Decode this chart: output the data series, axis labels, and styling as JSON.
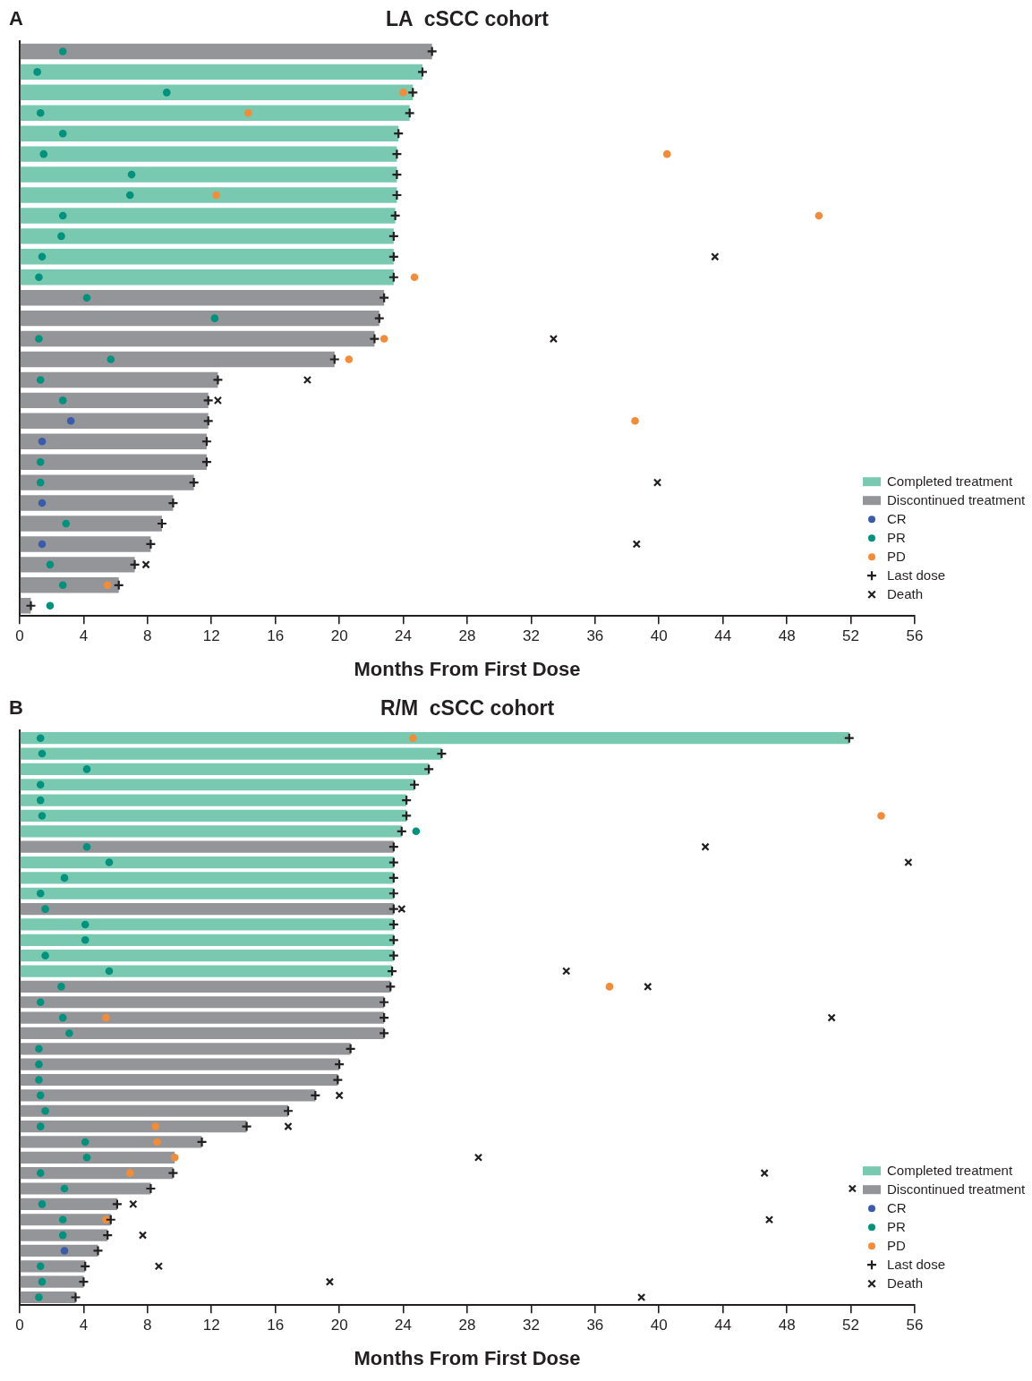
{
  "chart_data": [
    {
      "type": "bar",
      "orientation": "horizontal",
      "stacked": true,
      "title": "LA  cSCC cohort",
      "xlabel": "Months From First Dose",
      "annotations": [
        "A"
      ],
      "legend": "bottom right",
      "tick_labels": "x",
      "categories": [
        null,
        null,
        null,
        null,
        null,
        null,
        null,
        null,
        null,
        null,
        null,
        null,
        null,
        null,
        null,
        null,
        null,
        null,
        null,
        null,
        null,
        null,
        null,
        null,
        null,
        null,
        null,
        null
      ],
      "xlim": [
        0,
        56
      ],
      "xticks": [
        0,
        4,
        8,
        12,
        16,
        20,
        24,
        28,
        32,
        36,
        40,
        44,
        48,
        52,
        56
      ],
      "series": [
        {
          "name": "Completed treatment",
          "color": "#79c9b0",
          "values": [
            null,
            25.2,
            24.6,
            24.4,
            23.7,
            23.6,
            23.6,
            23.6,
            23.5,
            23.4,
            23.4,
            23.4,
            null,
            null,
            null,
            null,
            null,
            null,
            null,
            null,
            null,
            null,
            null,
            null,
            null,
            null,
            null,
            null
          ]
        },
        {
          "name": "Discontinued treatment",
          "color": "#939598",
          "values": [
            25.8,
            null,
            null,
            null,
            null,
            null,
            null,
            null,
            null,
            null,
            null,
            null,
            22.8,
            22.5,
            22.2,
            19.7,
            12.4,
            11.8,
            11.8,
            11.7,
            11.7,
            10.9,
            9.6,
            8.9,
            8.2,
            7.2,
            6.2,
            0.7
          ]
        },
        {
          "name": "CR",
          "type": "scatter",
          "marker": "circle",
          "color": "#3b5ba9",
          "values": [
            null,
            null,
            null,
            null,
            null,
            null,
            null,
            null,
            null,
            null,
            null,
            null,
            null,
            null,
            null,
            null,
            null,
            null,
            3.2,
            1.4,
            null,
            null,
            1.4,
            null,
            1.4,
            null,
            null,
            null
          ]
        },
        {
          "name": "PR",
          "type": "scatter",
          "marker": "circle",
          "color": "#00927d",
          "values": [
            2.7,
            1.1,
            9.2,
            1.3,
            2.7,
            1.5,
            7.0,
            6.9,
            2.7,
            2.6,
            1.4,
            1.2,
            4.2,
            12.2,
            1.2,
            5.7,
            1.3,
            2.7,
            null,
            null,
            1.3,
            1.3,
            null,
            2.9,
            null,
            1.9,
            2.7,
            1.9
          ]
        },
        {
          "name": "PD",
          "type": "scatter",
          "marker": "circle",
          "color": "#f28c38",
          "values": [
            null,
            null,
            24.0,
            14.3,
            null,
            40.5,
            null,
            12.3,
            50.0,
            null,
            null,
            24.7,
            null,
            null,
            22.8,
            20.6,
            null,
            null,
            38.5,
            null,
            null,
            null,
            null,
            null,
            null,
            null,
            5.5,
            null
          ]
        },
        {
          "name": "Last dose",
          "type": "scatter",
          "marker": "plus",
          "color": "#231f20",
          "values": [
            25.8,
            25.2,
            24.6,
            24.4,
            23.7,
            23.6,
            23.6,
            23.6,
            23.5,
            23.4,
            23.4,
            23.4,
            22.8,
            22.5,
            22.2,
            19.7,
            12.4,
            11.8,
            11.8,
            11.7,
            11.7,
            10.9,
            9.6,
            8.9,
            8.2,
            7.2,
            6.2,
            0.7
          ]
        },
        {
          "name": "Death",
          "type": "scatter",
          "marker": "cross",
          "color": "#231f20",
          "values": [
            null,
            null,
            null,
            null,
            null,
            null,
            null,
            null,
            null,
            null,
            43.5,
            null,
            null,
            null,
            33.4,
            null,
            18.0,
            12.4,
            null,
            null,
            null,
            39.9,
            null,
            null,
            38.6,
            7.9,
            null,
            null
          ]
        }
      ]
    },
    {
      "type": "bar",
      "orientation": "horizontal",
      "stacked": true,
      "title": "R/M  cSCC cohort",
      "xlabel": "Months From First Dose",
      "annotations": [
        "B"
      ],
      "legend": "bottom right",
      "tick_labels": "x",
      "categories": [
        null,
        null,
        null,
        null,
        null,
        null,
        null,
        null,
        null,
        null,
        null,
        null,
        null,
        null,
        null,
        null,
        null,
        null,
        null,
        null,
        null,
        null,
        null,
        null,
        null,
        null,
        null,
        null,
        null,
        null,
        null,
        null,
        null,
        null,
        null,
        null,
        null
      ],
      "xlim": [
        0,
        56
      ],
      "xticks": [
        0,
        4,
        8,
        12,
        16,
        20,
        24,
        28,
        32,
        36,
        40,
        44,
        48,
        52,
        56
      ],
      "series": [
        {
          "name": "Completed treatment",
          "color": "#79c9b0",
          "values": [
            51.9,
            26.4,
            25.6,
            24.7,
            24.2,
            24.2,
            23.9,
            null,
            23.4,
            23.4,
            23.4,
            null,
            23.4,
            23.4,
            23.4,
            23.3,
            null,
            null,
            null,
            null,
            null,
            null,
            null,
            null,
            null,
            null,
            null,
            null,
            null,
            null,
            null,
            null,
            null,
            null,
            null,
            null,
            null
          ]
        },
        {
          "name": "Discontinued treatment",
          "color": "#939598",
          "values": [
            null,
            null,
            null,
            null,
            null,
            null,
            null,
            23.4,
            null,
            null,
            null,
            23.4,
            null,
            null,
            null,
            null,
            23.2,
            22.8,
            22.8,
            22.8,
            20.7,
            20.0,
            19.9,
            18.5,
            16.8,
            14.2,
            11.4,
            9.7,
            9.6,
            8.2,
            6.1,
            5.7,
            5.5,
            4.9,
            4.1,
            4.0,
            3.5
          ]
        },
        {
          "name": "CR",
          "type": "scatter",
          "marker": "circle",
          "color": "#3b5ba9",
          "values": [
            null,
            null,
            null,
            null,
            null,
            null,
            null,
            null,
            null,
            null,
            null,
            null,
            null,
            null,
            null,
            null,
            null,
            null,
            null,
            null,
            null,
            null,
            null,
            null,
            null,
            null,
            null,
            null,
            null,
            null,
            null,
            null,
            null,
            2.8,
            null,
            null,
            null
          ]
        },
        {
          "name": "PR",
          "type": "scatter",
          "marker": "circle",
          "color": "#00927d",
          "values": [
            1.3,
            1.4,
            4.2,
            1.3,
            1.3,
            1.4,
            24.8,
            4.2,
            5.6,
            2.8,
            1.3,
            1.6,
            4.1,
            4.1,
            1.6,
            5.6,
            2.6,
            1.3,
            2.7,
            3.1,
            1.2,
            1.2,
            1.2,
            1.3,
            1.6,
            1.3,
            4.1,
            4.2,
            1.3,
            2.8,
            1.4,
            2.7,
            2.7,
            null,
            1.3,
            1.4,
            1.2
          ]
        },
        {
          "name": "PD",
          "type": "scatter",
          "marker": "circle",
          "color": "#f28c38",
          "values": [
            24.6,
            null,
            null,
            null,
            null,
            53.9,
            null,
            null,
            null,
            null,
            null,
            null,
            null,
            null,
            null,
            null,
            36.9,
            null,
            5.4,
            null,
            null,
            null,
            null,
            null,
            null,
            8.5,
            8.6,
            9.7,
            6.9,
            null,
            null,
            5.4,
            null,
            null,
            null,
            null,
            null
          ]
        },
        {
          "name": "Last dose",
          "type": "scatter",
          "marker": "plus",
          "color": "#231f20",
          "values": [
            51.9,
            26.4,
            25.6,
            24.7,
            24.2,
            24.2,
            23.9,
            23.4,
            23.4,
            23.4,
            23.4,
            23.4,
            23.4,
            23.4,
            23.4,
            23.3,
            23.2,
            22.8,
            22.8,
            22.8,
            20.7,
            20.0,
            19.9,
            18.5,
            16.8,
            14.2,
            11.4,
            null,
            9.6,
            8.2,
            6.1,
            5.7,
            5.5,
            4.9,
            4.1,
            4.0,
            3.5
          ]
        },
        {
          "name": "Death",
          "type": "scatter",
          "marker": "cross",
          "color": "#231f20",
          "values": [
            null,
            null,
            null,
            null,
            null,
            null,
            null,
            42.9,
            55.6,
            null,
            null,
            23.9,
            null,
            null,
            null,
            34.2,
            39.3,
            null,
            50.8,
            null,
            null,
            null,
            null,
            20.0,
            null,
            16.8,
            null,
            28.7,
            46.6,
            52.1,
            7.1,
            46.9,
            7.7,
            null,
            8.7,
            19.4,
            38.9
          ]
        }
      ]
    }
  ]
}
